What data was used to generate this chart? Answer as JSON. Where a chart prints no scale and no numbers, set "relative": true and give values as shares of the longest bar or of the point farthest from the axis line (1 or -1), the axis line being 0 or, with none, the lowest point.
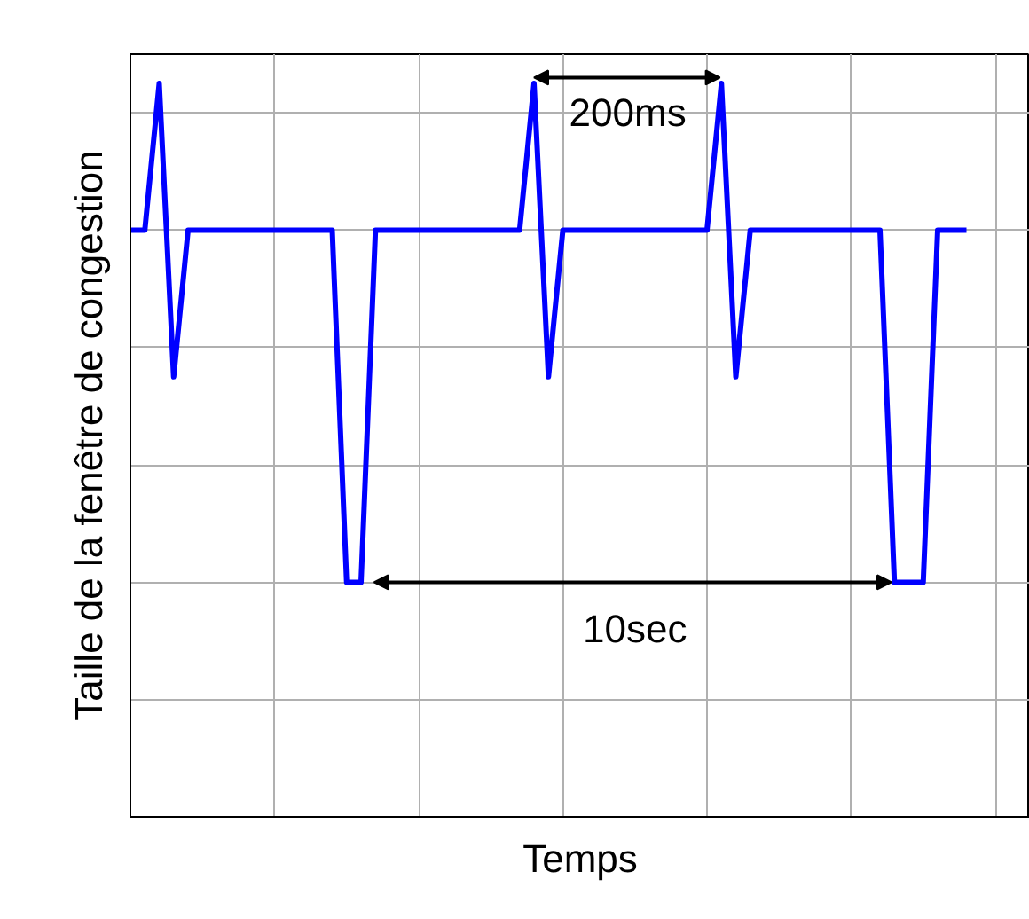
{
  "chart_data": {
    "type": "line",
    "xlabel": "Temps",
    "ylabel": "Taille de la fenêtre de congestion",
    "relative": true,
    "categories": [
      null,
      null,
      null,
      null,
      null,
      null,
      null,
      null,
      null,
      null,
      null,
      null,
      null,
      null,
      null,
      null,
      null,
      null,
      null,
      null,
      null,
      null,
      null,
      null,
      null,
      null,
      null,
      null,
      null,
      null,
      null,
      null,
      null,
      null,
      null,
      null,
      null,
      null,
      null,
      null,
      null,
      null,
      null,
      null,
      null,
      null,
      null,
      null,
      null,
      null,
      null,
      null,
      null,
      null,
      null,
      null,
      null,
      null,
      null
    ],
    "series": [
      {
        "color": "#0000ff",
        "values": [
          0.8,
          0.8,
          1,
          0.6,
          0.8,
          0.8,
          0.8,
          0.8,
          0.8,
          0.8,
          0.8,
          0.8,
          0.8,
          0.8,
          0.8,
          0.32,
          0.32,
          0.8,
          0.8,
          0.8,
          0.8,
          0.8,
          0.8,
          0.8,
          0.8,
          0.8,
          0.8,
          0.8,
          1,
          0.6,
          0.8,
          0.8,
          0.8,
          0.8,
          0.8,
          0.8,
          0.8,
          0.8,
          0.8,
          0.8,
          0.8,
          1,
          0.6,
          0.8,
          0.8,
          0.8,
          0.8,
          0.8,
          0.8,
          0.8,
          0.8,
          0.8,
          0.8,
          0.32,
          0.32,
          0.32,
          0.8,
          0.8,
          0.8
        ]
      }
    ],
    "grid": true,
    "line_style": "solid",
    "annotations": [
      "200ms",
      "10sec"
    ]
  }
}
